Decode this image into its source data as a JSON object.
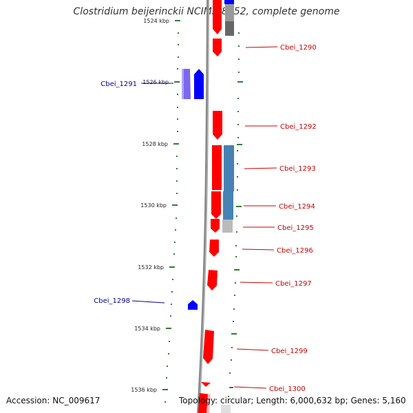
{
  "title": "Clostridium beijerinckii NCIMB 8052, complete genome",
  "footer": {
    "accession": "Accession: NC_009617",
    "topology": "Topology: circular; Length: 6,000,632 bp; Genes: 5,160"
  },
  "colors": {
    "forward_gene": "#ff0000",
    "reverse_gene": "#0000ff",
    "reverse_gene_light": "#7b68ee",
    "cog_blue": "#4682b4",
    "cog_gray": "#999999",
    "forward_label": "#cc0000",
    "reverse_label": "#000099",
    "tick": "#2e7d32",
    "backbone": "#888888"
  },
  "kbp_ticks": [
    {
      "label": "1524 kbp"
    },
    {
      "label": "1526 kbp"
    },
    {
      "label": "1528 kbp"
    },
    {
      "label": "1530 kbp"
    },
    {
      "label": "1532 kbp"
    },
    {
      "label": "1534 kbp"
    },
    {
      "label": "1536 kbp"
    }
  ],
  "forward_genes": [
    "Cbei_1290",
    "Cbei_1292",
    "Cbei_1293",
    "Cbei_1294",
    "Cbei_1295",
    "Cbei_1296",
    "Cbei_1297",
    "Cbei_1299",
    "Cbei_1300"
  ],
  "reverse_genes": [
    "Cbei_1291",
    "Cbei_1298"
  ]
}
